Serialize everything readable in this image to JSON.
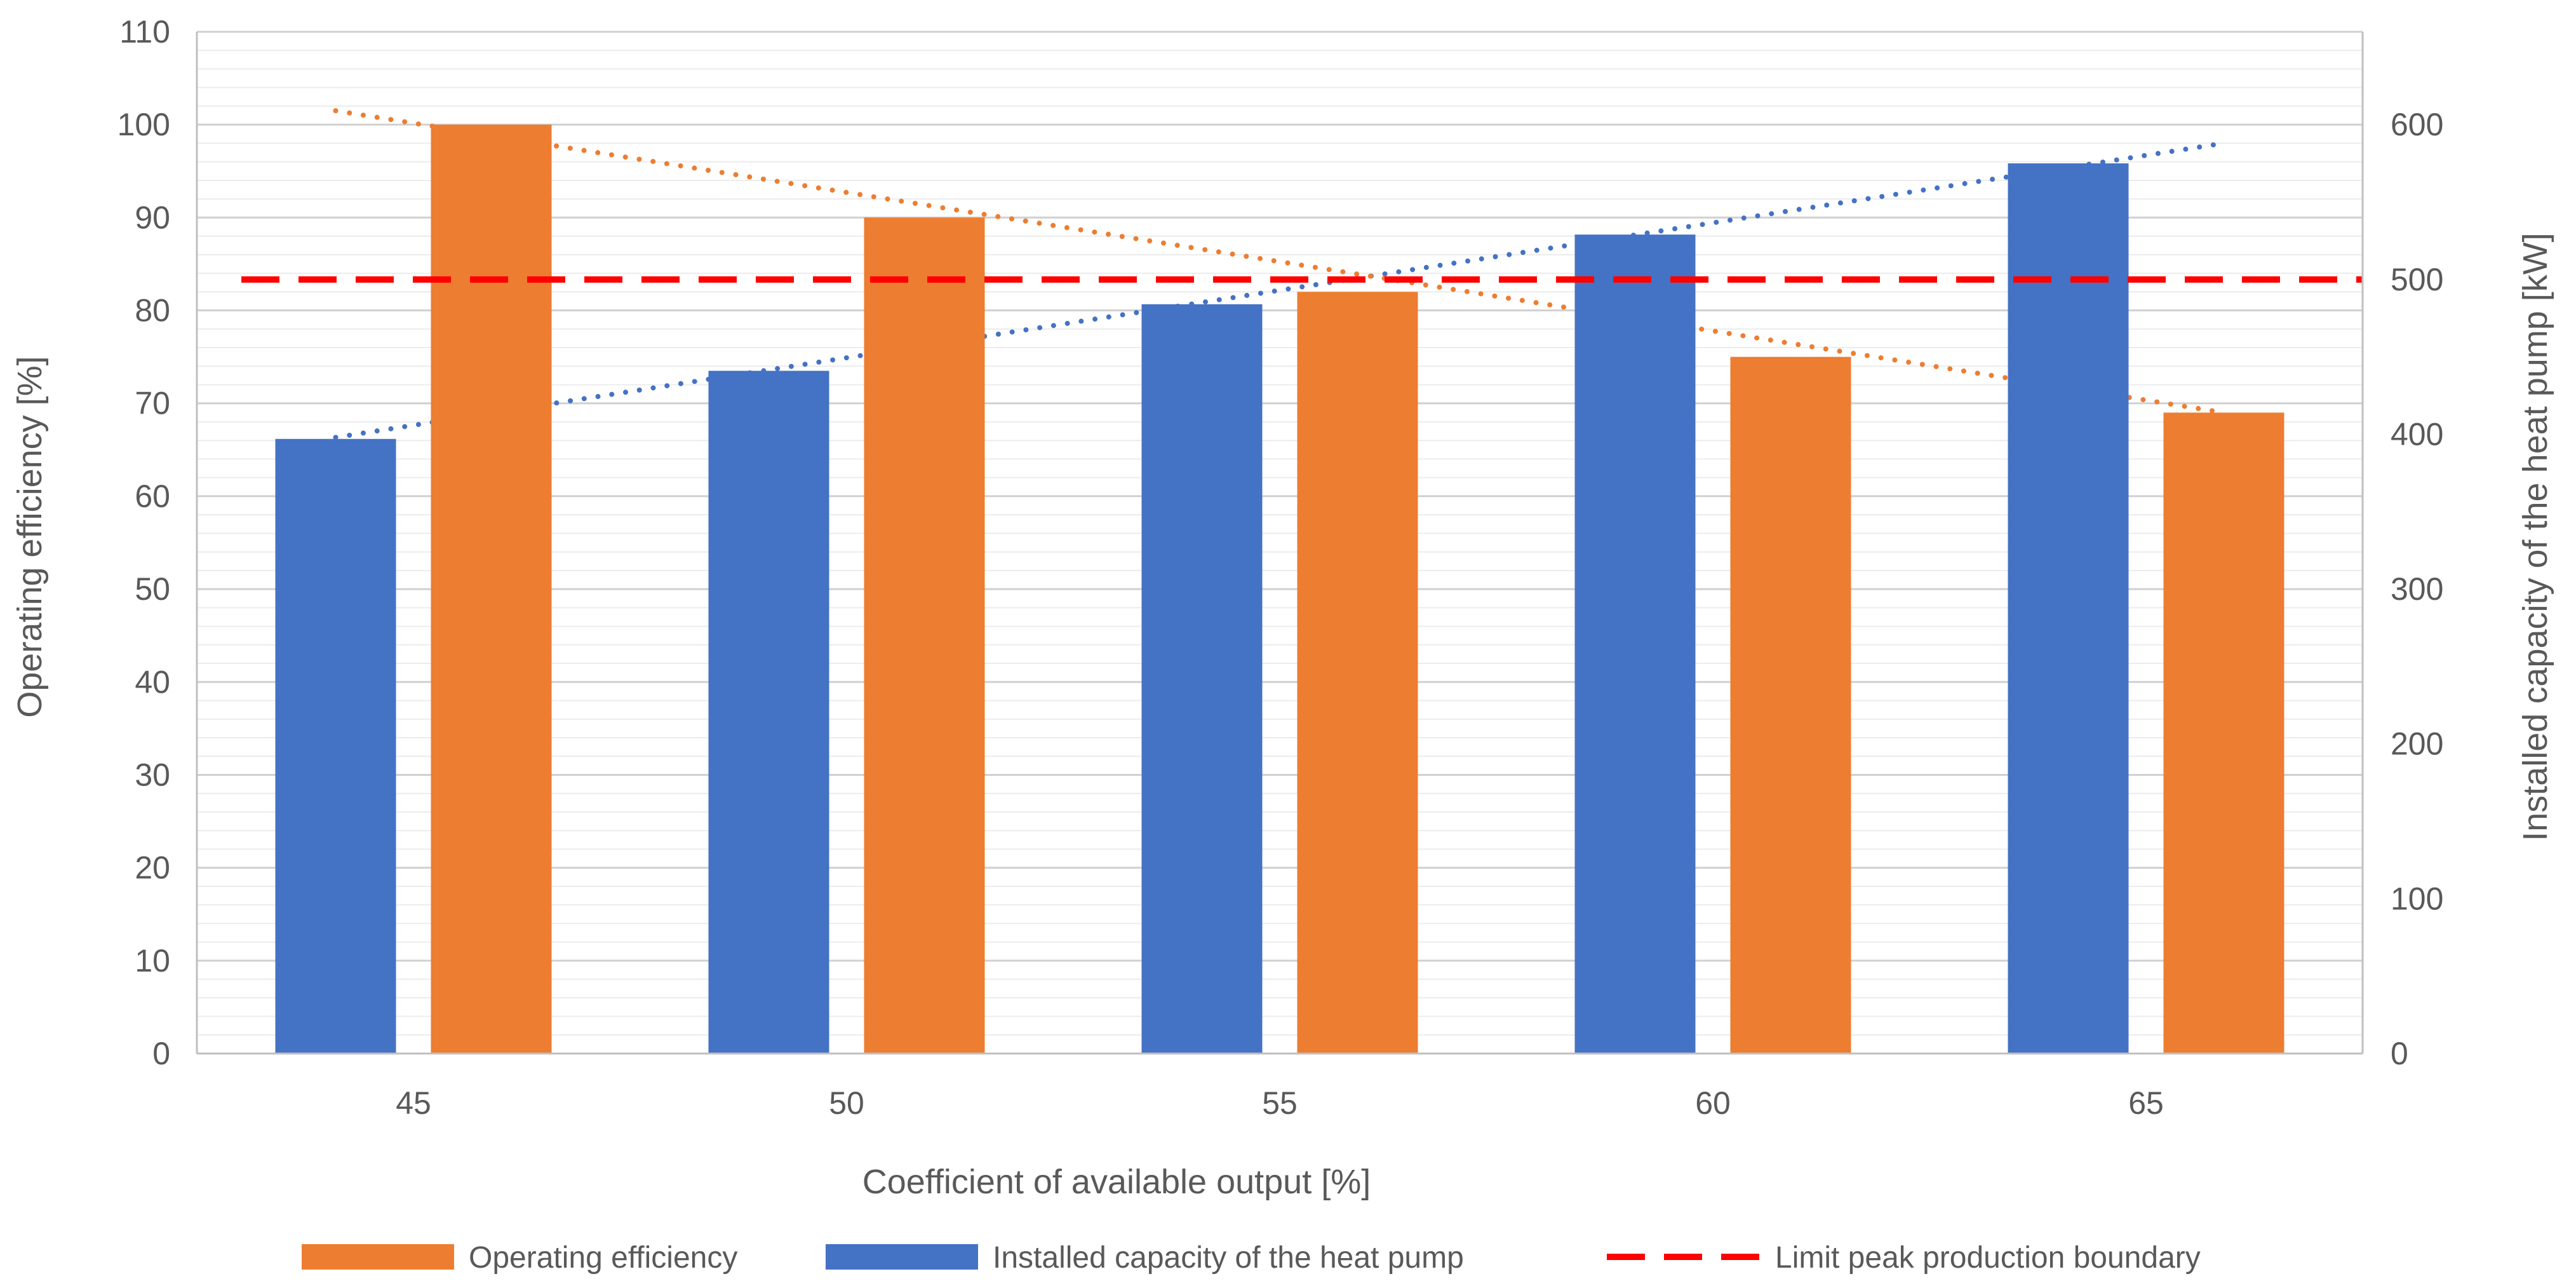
{
  "chart_data": {
    "type": "bar",
    "title": "",
    "xlabel": "Coefficient of available output [%]",
    "ylabel": "Operating efficiency [%]",
    "y2label": "Installed capacity of the heat pump [kW]",
    "categories": [
      "45",
      "50",
      "55",
      "60",
      "65"
    ],
    "ylim": [
      0,
      110
    ],
    "y2lim": [
      0,
      660
    ],
    "yticks": [
      "0",
      "10",
      "20",
      "30",
      "40",
      "50",
      "60",
      "70",
      "80",
      "90",
      "100",
      "110"
    ],
    "y2ticks": [
      "0",
      "100",
      "200",
      "300",
      "400",
      "500",
      "600"
    ],
    "series": [
      {
        "name": "Installed capacity of the heat pump",
        "axis": "secondary",
        "color": "#4472C4",
        "values": [
          397,
          441,
          484,
          529,
          575
        ],
        "trendline": {
          "style": "dotted",
          "start": 398,
          "end": 588
        }
      },
      {
        "name": "Operating efficiency",
        "axis": "primary",
        "color": "#ED7D31",
        "values": [
          100,
          90,
          82,
          75,
          69
        ],
        "trendline": {
          "style": "dotted",
          "start": 101.5,
          "end": 69
        }
      }
    ],
    "reference_line": {
      "name": "Limit peak production boundary",
      "axis": "secondary",
      "value": 500,
      "color": "#FF0000",
      "style": "dashed"
    },
    "legend": {
      "position": "bottom",
      "entries": [
        "Operating efficiency",
        "Installed capacity of the heat pump",
        "Limit peak production boundary"
      ]
    },
    "grid": true
  }
}
